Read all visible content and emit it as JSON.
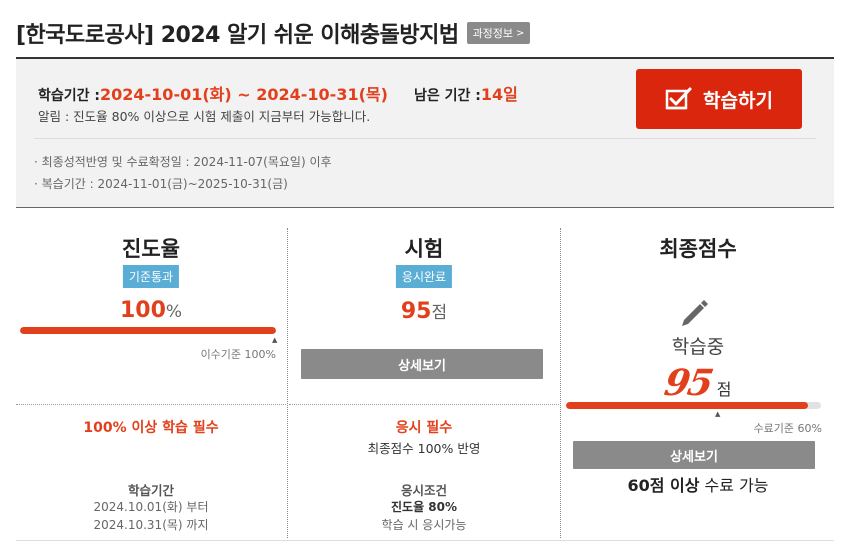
{
  "course": {
    "title": "[한국도로공사] 2024 알기 쉬운 이해충돌방지법",
    "info_button": "과정정보",
    "info_chevron": ">"
  },
  "info": {
    "period_label": "학습기간 : ",
    "period_value": "2024-10-01(화) ~ 2024-10-31(목)",
    "remaining_label": "남은 기간 : ",
    "remaining_value": "14일",
    "notice": "알림 : 진도율 80% 이상으로 시험 제출이 지금부터 가능합니다.",
    "final_date_note": "· 최종성적반영 및 수료확정일 : 2024-11-07(목요일) 이후",
    "review_note": "· 복습기간 : 2024-11-01(금)~2025-10-31(금)",
    "study_button": "학습하기"
  },
  "progress_col": {
    "title": "진도율",
    "badge": "기준통과",
    "value": "100",
    "unit": "%",
    "bar_percent": 100,
    "standard_marker_percent": 100,
    "standard_text": "이수기준 100%",
    "requirement": "100% 이상 학습 필수",
    "period_head": "학습기간",
    "period_line1": "2024.10.01(화) 부터",
    "period_line2": "2024.10.31(목) 까지"
  },
  "exam_col": {
    "title": "시험",
    "badge": "응시완료",
    "value": "95",
    "unit": "점",
    "detail_button": "상세보기",
    "requirement": "응시 필수",
    "requirement_sub": "최종점수 100% 반영",
    "cond_head": "응시조건",
    "cond_line1": "진도율 80%",
    "cond_line2": "학습 시 응시가능"
  },
  "final_col": {
    "title": "최종점수",
    "status": "학습중",
    "score": "95",
    "score_unit": "점",
    "bar_percent": 95,
    "standard_marker_percent": 60,
    "standard_text": "수료기준 60%",
    "detail_button": "상세보기",
    "pass_strong": "60점 이상",
    "pass_rest": " 수료 가능"
  },
  "colors": {
    "accent": "#e2401c",
    "button_red": "#d9260c",
    "badge_blue": "#5aaed5",
    "button_gray": "#8a8a8a"
  },
  "icons": {
    "study_button": "checkbox-check-icon",
    "final_status": "pencil-icon",
    "bar_marker": "triangle-up-icon"
  }
}
